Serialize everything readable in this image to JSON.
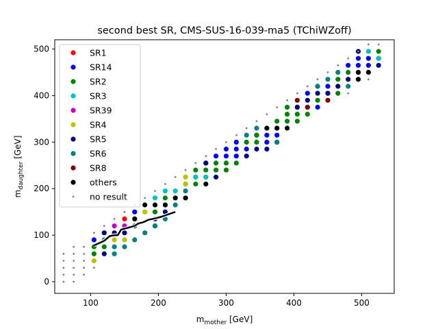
{
  "chart_data": {
    "type": "scatter",
    "title": "second best SR, CMS-SUS-16-039-ma5 (TChiWZoff)",
    "xlabel": {
      "main": "m",
      "sub": "mother",
      "unit": " [GeV]"
    },
    "ylabel": {
      "main": "m",
      "sub": "daughter",
      "unit": " [GeV]"
    },
    "xlim": [
      47,
      548
    ],
    "ylim": [
      -25,
      520
    ],
    "xticks": [
      100,
      200,
      300,
      400,
      500
    ],
    "yticks": [
      0,
      100,
      200,
      300,
      400,
      500
    ],
    "legend_position": "top-left",
    "legend": [
      {
        "label": "SR1",
        "color": "#ff0000",
        "marker": "dot"
      },
      {
        "label": "SR14",
        "color": "#0000ff",
        "marker": "dot"
      },
      {
        "label": "SR2",
        "color": "#008000",
        "marker": "dot"
      },
      {
        "label": "SR3",
        "color": "#00bfbf",
        "marker": "dot"
      },
      {
        "label": "SR39",
        "color": "#bf00bf",
        "marker": "dot"
      },
      {
        "label": "SR4",
        "color": "#bfbf00",
        "marker": "dot"
      },
      {
        "label": "SR5",
        "color": "#000080",
        "marker": "dot"
      },
      {
        "label": "SR6",
        "color": "#008080",
        "marker": "dot"
      },
      {
        "label": "SR8",
        "color": "#800000",
        "marker": "dot"
      },
      {
        "label": "others",
        "color": "#000000",
        "marker": "dot"
      },
      {
        "label": "no result",
        "color": "#808080",
        "marker": "small"
      }
    ],
    "series": [
      {
        "name": "SR1",
        "points": [
          [
            150,
            135
          ]
        ]
      },
      {
        "name": "SR14",
        "points": [
          [
            105,
            90
          ],
          [
            165,
            150
          ],
          [
            270,
            255
          ],
          [
            285,
            270
          ],
          [
            300,
            285
          ],
          [
            300,
            270
          ],
          [
            315,
            300
          ],
          [
            315,
            285
          ],
          [
            315,
            270
          ],
          [
            330,
            285
          ],
          [
            345,
            315
          ],
          [
            360,
            300
          ],
          [
            360,
            315
          ],
          [
            375,
            315
          ],
          [
            420,
            405
          ],
          [
            435,
            375
          ],
          [
            450,
            420
          ],
          [
            480,
            465
          ],
          [
            495,
            480
          ],
          [
            495,
            465
          ],
          [
            510,
            465
          ],
          [
            510,
            480
          ],
          [
            525,
            480
          ]
        ]
      },
      {
        "name": "SR2",
        "points": [
          [
            105,
            75
          ],
          [
            105,
            60
          ],
          [
            120,
            75
          ],
          [
            195,
            150
          ],
          [
            210,
            180
          ],
          [
            210,
            165
          ],
          [
            240,
            210
          ],
          [
            255,
            240
          ],
          [
            255,
            225
          ],
          [
            255,
            210
          ],
          [
            270,
            240
          ],
          [
            270,
            225
          ],
          [
            285,
            255
          ],
          [
            285,
            240
          ],
          [
            300,
            255
          ],
          [
            300,
            240
          ],
          [
            315,
            255
          ],
          [
            330,
            300
          ],
          [
            345,
            315
          ],
          [
            345,
            300
          ],
          [
            360,
            330
          ],
          [
            375,
            345
          ],
          [
            375,
            330
          ],
          [
            390,
            375
          ],
          [
            390,
            360
          ],
          [
            390,
            345
          ],
          [
            405,
            375
          ],
          [
            405,
            360
          ],
          [
            405,
            345
          ],
          [
            420,
            375
          ],
          [
            420,
            360
          ],
          [
            435,
            420
          ],
          [
            435,
            390
          ],
          [
            450,
            405
          ],
          [
            465,
            435
          ],
          [
            465,
            405
          ],
          [
            480,
            450
          ],
          [
            495,
            450
          ],
          [
            525,
            495
          ]
        ]
      },
      {
        "name": "SR3",
        "points": [
          [
            165,
            135
          ],
          [
            195,
            180
          ],
          [
            210,
            195
          ],
          [
            225,
            195
          ],
          [
            240,
            180
          ],
          [
            255,
            225
          ],
          [
            270,
            225
          ],
          [
            510,
            495
          ],
          [
            525,
            480
          ]
        ]
      },
      {
        "name": "SR39",
        "points": [
          [
            135,
            120
          ],
          [
            150,
            120
          ]
        ]
      },
      {
        "name": "SR4",
        "points": [
          [
            105,
            45
          ],
          [
            135,
            90
          ],
          [
            150,
            90
          ],
          [
            180,
            150
          ],
          [
            225,
            180
          ],
          [
            240,
            225
          ],
          [
            240,
            210
          ]
        ]
      },
      {
        "name": "SR5",
        "points": [
          [
            120,
            105
          ],
          [
            120,
            60
          ],
          [
            135,
            105
          ],
          [
            150,
            105
          ],
          [
            165,
            120
          ],
          [
            195,
            135
          ],
          [
            195,
            120
          ],
          [
            210,
            150
          ],
          [
            270,
            255
          ],
          [
            285,
            225
          ],
          [
            330,
            270
          ],
          [
            345,
            285
          ],
          [
            360,
            285
          ],
          [
            375,
            300
          ],
          [
            405,
            375
          ],
          [
            420,
            390
          ],
          [
            435,
            405
          ],
          [
            450,
            405
          ],
          [
            465,
            420
          ],
          [
            480,
            435
          ],
          [
            495,
            495
          ],
          [
            525,
            465
          ]
        ]
      },
      {
        "name": "SR6",
        "points": [
          [
            120,
            90
          ],
          [
            135,
            75
          ],
          [
            135,
            60
          ],
          [
            150,
            75
          ],
          [
            165,
            90
          ],
          [
            180,
            105
          ],
          [
            195,
            120
          ],
          [
            210,
            135
          ],
          [
            225,
            165
          ],
          [
            240,
            195
          ],
          [
            330,
            315
          ],
          [
            345,
            330
          ],
          [
            375,
            300
          ],
          [
            435,
            420
          ],
          [
            450,
            435
          ],
          [
            465,
            450
          ],
          [
            480,
            420
          ]
        ]
      },
      {
        "name": "SR8",
        "points": [
          [
            405,
            390
          ],
          [
            420,
            375
          ],
          [
            450,
            390
          ]
        ]
      },
      {
        "name": "others",
        "points": [
          [
            165,
            135
          ],
          [
            180,
            165
          ],
          [
            195,
            165
          ],
          [
            210,
            165
          ],
          [
            225,
            180
          ],
          [
            240,
            180
          ],
          [
            270,
            210
          ],
          [
            360,
            330
          ],
          [
            375,
            330
          ],
          [
            390,
            330
          ],
          [
            495,
            435
          ],
          [
            495,
            450
          ],
          [
            510,
            450
          ]
        ]
      },
      {
        "name": "no result",
        "points": [
          [
            60,
            0
          ],
          [
            60,
            15
          ],
          [
            60,
            30
          ],
          [
            60,
            45
          ],
          [
            60,
            60
          ],
          [
            75,
            0
          ],
          [
            75,
            15
          ],
          [
            75,
            30
          ],
          [
            75,
            45
          ],
          [
            75,
            60
          ],
          [
            75,
            75
          ],
          [
            90,
            15
          ],
          [
            90,
            30
          ],
          [
            90,
            45
          ],
          [
            90,
            60
          ],
          [
            90,
            75
          ],
          [
            105,
            30
          ],
          [
            105,
            105
          ],
          [
            120,
            120
          ],
          [
            135,
            135
          ],
          [
            150,
            150
          ],
          [
            165,
            165
          ],
          [
            180,
            180
          ],
          [
            195,
            195
          ],
          [
            210,
            210
          ],
          [
            225,
            225
          ],
          [
            240,
            240
          ],
          [
            255,
            255
          ],
          [
            270,
            270
          ],
          [
            285,
            285
          ],
          [
            300,
            300
          ],
          [
            315,
            315
          ],
          [
            330,
            330
          ],
          [
            345,
            345
          ],
          [
            360,
            360
          ],
          [
            375,
            375
          ],
          [
            390,
            390
          ],
          [
            405,
            405
          ],
          [
            420,
            420
          ],
          [
            435,
            435
          ],
          [
            450,
            450
          ],
          [
            465,
            465
          ],
          [
            480,
            480
          ],
          [
            495,
            495
          ],
          [
            510,
            510
          ],
          [
            525,
            510
          ],
          [
            480,
            405
          ],
          [
            510,
            435
          ]
        ]
      }
    ],
    "exclusion_contour": [
      [
        105,
        78
      ],
      [
        120,
        88
      ],
      [
        128,
        98
      ],
      [
        135,
        100
      ],
      [
        140,
        100
      ],
      [
        145,
        112
      ],
      [
        155,
        116
      ],
      [
        165,
        120
      ],
      [
        170,
        125
      ],
      [
        178,
        128
      ],
      [
        185,
        133
      ],
      [
        195,
        136
      ],
      [
        205,
        140
      ],
      [
        215,
        145
      ],
      [
        225,
        150
      ]
    ]
  }
}
